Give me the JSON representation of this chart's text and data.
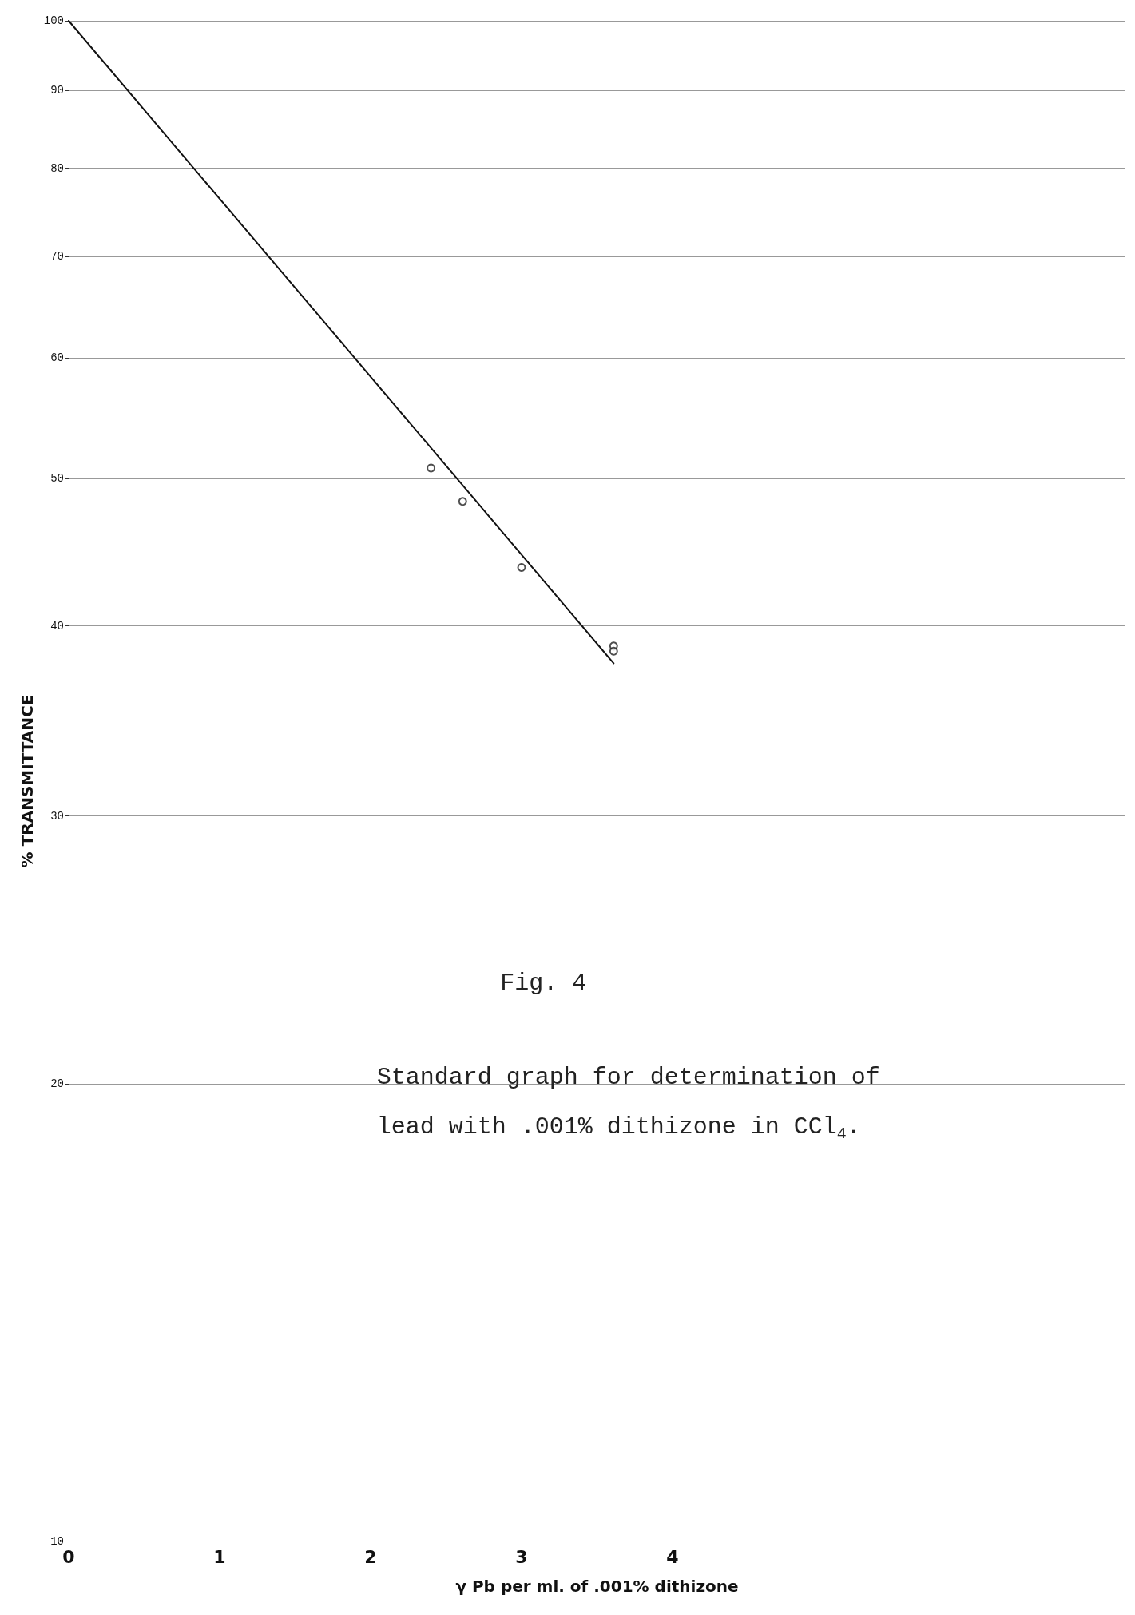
{
  "chart_data": {
    "type": "scatter",
    "xlabel": "γ Pb per ml. of .001% dithizone",
    "ylabel": "% TRANSMITTANCE",
    "annotations": [
      "Fig. 4",
      "Standard graph for determination of lead with .001% dithizone in CCl$_{4}$."
    ],
    "series": [
      {
        "color": "#222222",
        "marker": "circle",
        "x": [
          2.4,
          2.61,
          3.0,
          3.61,
          3.61
        ],
        "values": [
          50.8,
          48.3,
          43.7,
          38.8,
          38.5
        ]
      },
      {
        "type": "line",
        "marker": "none",
        "color": "#111111",
        "x": [
          0,
          3.61
        ],
        "values": [
          100,
          37.8
        ]
      }
    ],
    "xlim": [
      0,
      7
    ],
    "xticks": [
      0,
      1,
      2,
      3,
      4
    ],
    "ylim": [
      10,
      100
    ],
    "yticks": [
      10,
      20,
      30,
      40,
      50,
      60,
      70,
      80,
      90,
      100
    ],
    "log": "y",
    "grid": true,
    "line_style": "solid"
  }
}
